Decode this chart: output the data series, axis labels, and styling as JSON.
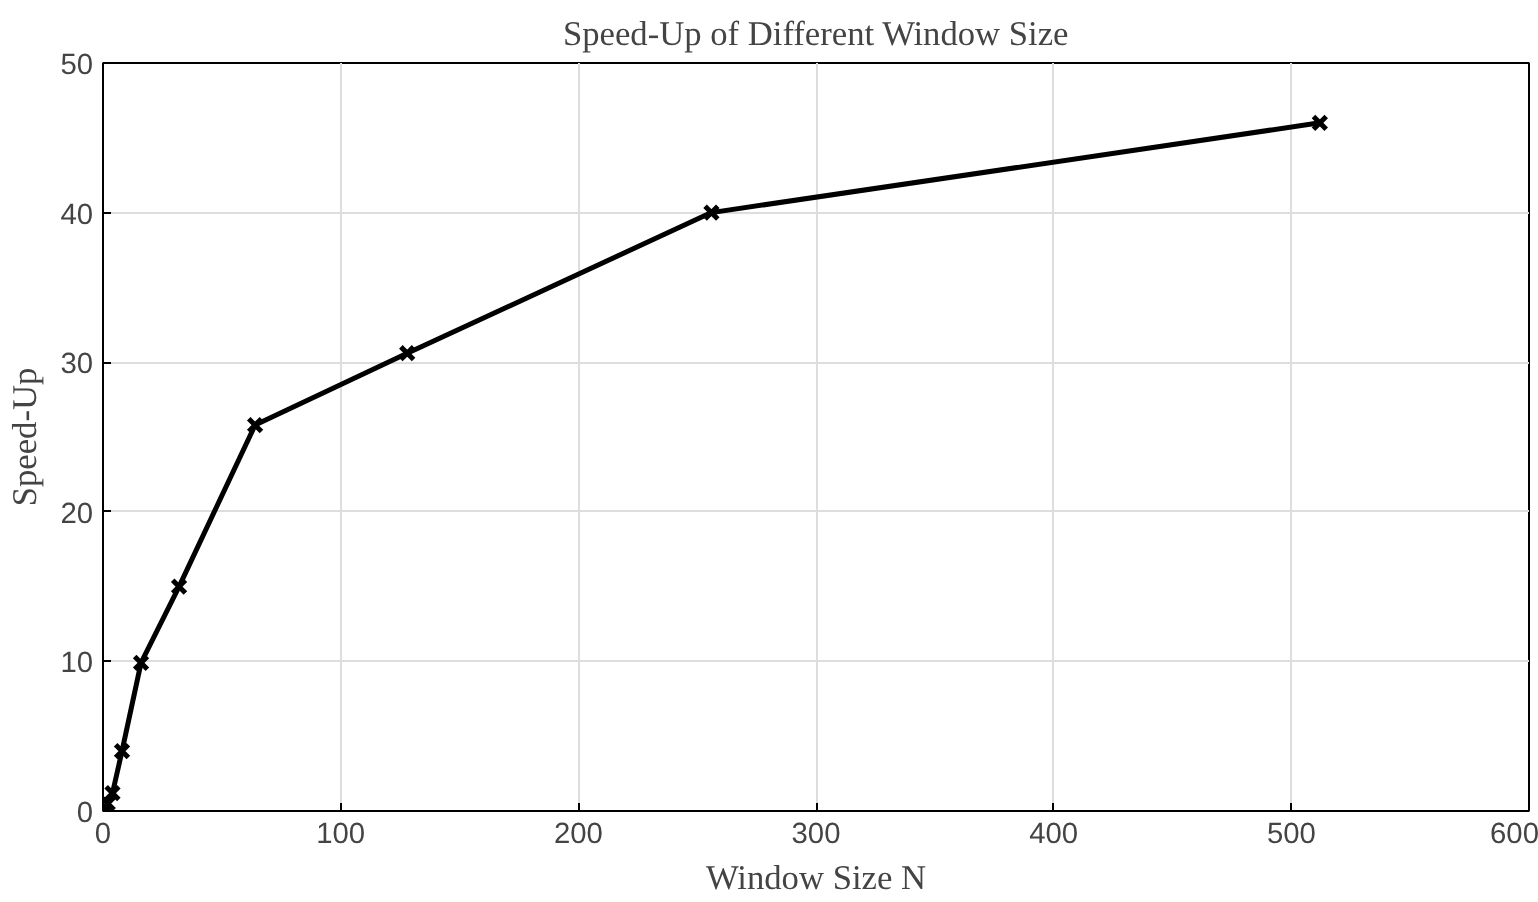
{
  "chart_data": {
    "type": "line",
    "title": "Speed-Up of Different Window Size",
    "xlabel": "Window Size N",
    "ylabel": "Speed-Up",
    "x": [
      1,
      2,
      4,
      8,
      16,
      32,
      64,
      128,
      256,
      512
    ],
    "series": [
      {
        "color": "#000000",
        "values": [
          0,
          0.5,
          1.2,
          4,
          9.9,
          15,
          25.8,
          30.6,
          40,
          46
        ]
      }
    ],
    "xlim": [
      0,
      600
    ],
    "xticks": [
      0,
      100,
      200,
      300,
      400,
      500,
      600
    ],
    "ylim": [
      0,
      50
    ],
    "yticks": [
      0,
      10,
      20,
      30,
      40,
      50
    ],
    "grid": true,
    "marker": "cross",
    "line_style": "solid"
  }
}
